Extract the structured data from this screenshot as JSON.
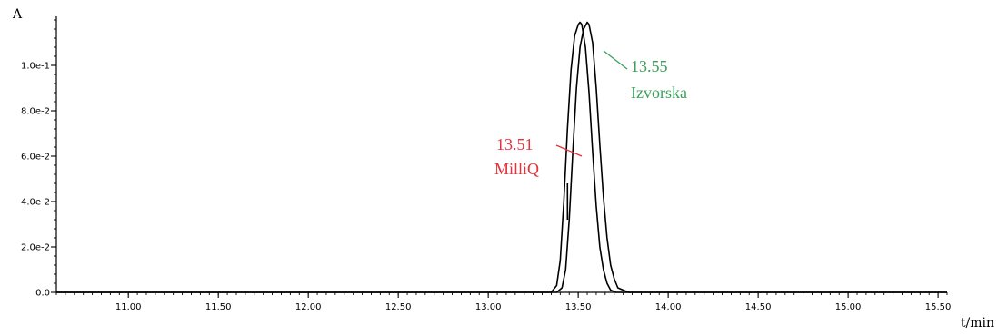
{
  "chart_data": {
    "type": "line",
    "title": "",
    "xlabel": "t/min",
    "ylabel": "A",
    "xlim": [
      10.6,
      15.55
    ],
    "ylim": [
      0,
      0.12
    ],
    "grid": false,
    "x_ticks": [
      {
        "value": 11.0,
        "label": "11.00"
      },
      {
        "value": 11.5,
        "label": "11.50"
      },
      {
        "value": 12.0,
        "label": "12.00"
      },
      {
        "value": 12.5,
        "label": "12.50"
      },
      {
        "value": 13.0,
        "label": "13.00"
      },
      {
        "value": 13.5,
        "label": "13.50"
      },
      {
        "value": 14.0,
        "label": "14.00"
      },
      {
        "value": 14.5,
        "label": "14.50"
      },
      {
        "value": 15.0,
        "label": "15.00"
      },
      {
        "value": 15.5,
        "label": "15.50"
      }
    ],
    "y_ticks": [
      {
        "value": 0.0,
        "label": "0.0"
      },
      {
        "value": 0.02,
        "label": "2.0e-2"
      },
      {
        "value": 0.04,
        "label": "4.0e-2"
      },
      {
        "value": 0.06,
        "label": "6.0e-2"
      },
      {
        "value": 0.08,
        "label": "8.0e-2"
      },
      {
        "value": 0.1,
        "label": "1.0e-1"
      }
    ],
    "series": [
      {
        "color": "#000000",
        "x": [
          10.6,
          13.35,
          13.38,
          13.4,
          13.42,
          13.44,
          13.46,
          13.48,
          13.5,
          13.51,
          13.52,
          13.54,
          13.56,
          13.58,
          13.6,
          13.62,
          13.64,
          13.66,
          13.68,
          13.71,
          15.55
        ],
        "y": [
          0.0,
          0.0,
          0.003,
          0.014,
          0.04,
          0.072,
          0.098,
          0.113,
          0.118,
          0.119,
          0.118,
          0.108,
          0.088,
          0.062,
          0.038,
          0.02,
          0.01,
          0.004,
          0.001,
          0.0,
          0.0
        ]
      },
      {
        "color": "#000000",
        "x": [
          10.6,
          13.38,
          13.41,
          13.43,
          13.45,
          13.47,
          13.49,
          13.51,
          13.53,
          13.55,
          13.56,
          13.58,
          13.6,
          13.62,
          13.64,
          13.66,
          13.68,
          13.7,
          13.72,
          13.75,
          13.78,
          15.55
        ],
        "y": [
          0.0,
          0.0,
          0.002,
          0.01,
          0.032,
          0.062,
          0.09,
          0.108,
          0.116,
          0.119,
          0.118,
          0.11,
          0.09,
          0.065,
          0.042,
          0.024,
          0.012,
          0.006,
          0.002,
          0.001,
          0.0,
          0.0
        ]
      }
    ],
    "annotations": [
      {
        "lines": [
          "13.51",
          "MilliQ"
        ],
        "color": "#e8303a"
      },
      {
        "lines": [
          "13.55",
          "Izvorska"
        ],
        "color": "#3aa15a"
      }
    ]
  }
}
